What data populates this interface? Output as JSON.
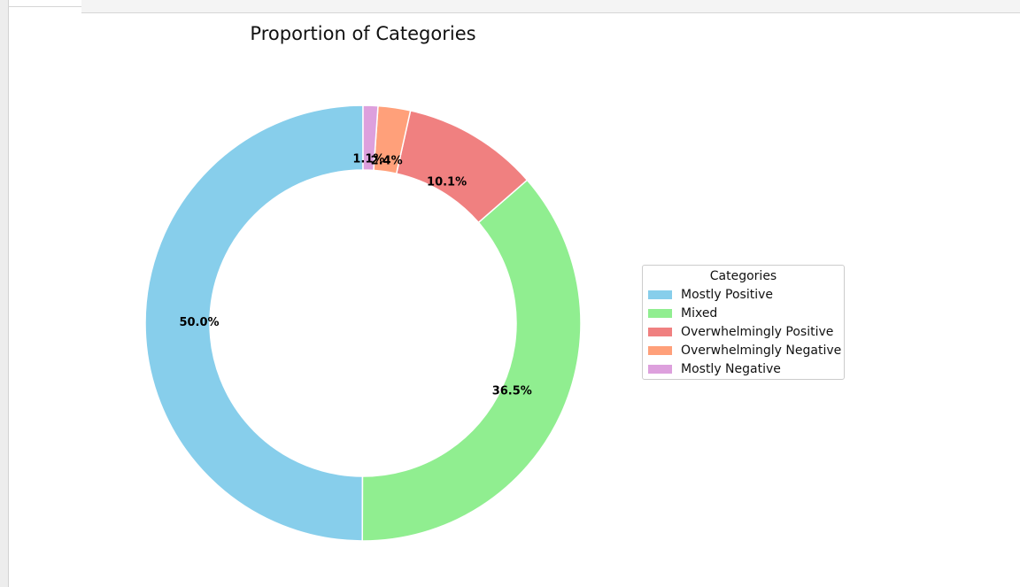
{
  "chart_data": {
    "type": "pie",
    "title": "Proportion of Categories",
    "categories": [
      "Mostly Positive",
      "Mixed",
      "Overwhelmingly Positive",
      "Overwhelmingly Negative",
      "Mostly Negative"
    ],
    "values": [
      50.0,
      36.5,
      10.1,
      2.4,
      1.1
    ],
    "labels": [
      "50.0%",
      "36.5%",
      "10.1%",
      "2.4%",
      "1.1%"
    ],
    "colors": [
      "#87ceeb",
      "#90ee90",
      "#f08080",
      "#ffa07a",
      "#dda0dd"
    ],
    "donut": true,
    "legend": {
      "title": "Categories",
      "placement": "right"
    }
  }
}
